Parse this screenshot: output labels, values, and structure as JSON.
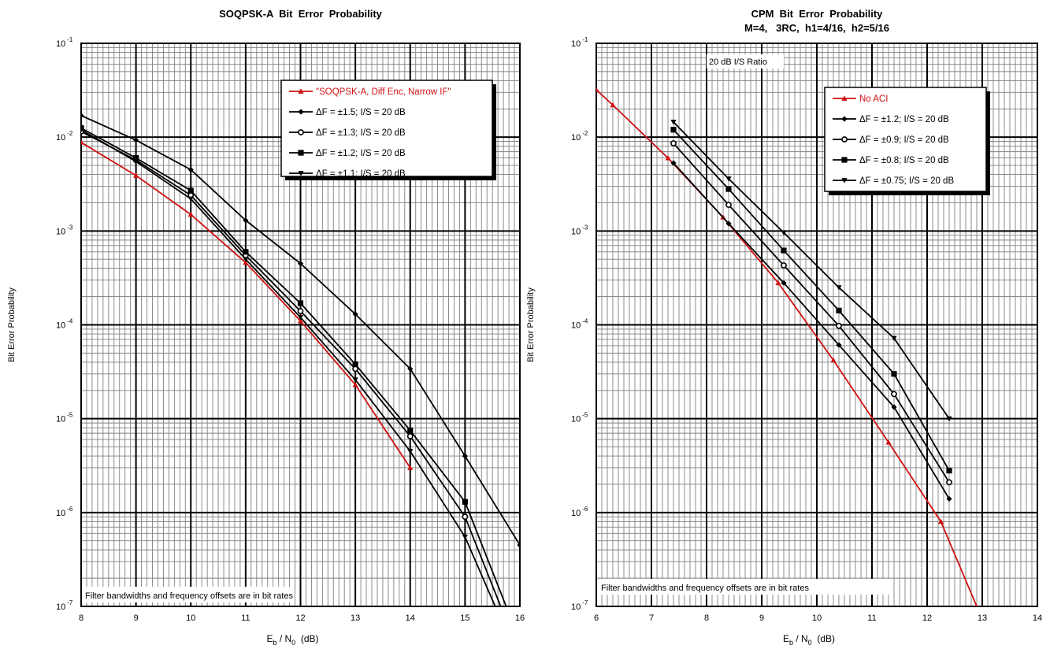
{
  "colors": {
    "black": "#000000",
    "red": "#d01010",
    "grid": "#808080"
  },
  "chart_data": [
    {
      "type": "line",
      "title": "SOQPSK-A  Bit  Error  Probability",
      "subtitle": "",
      "xlabel_main": "E",
      "xlabel_sub1": "b",
      "xlabel_mid": " / N",
      "xlabel_sub2": "0",
      "xlabel_end": "  (dB)",
      "ylabel": "Bit Error Probability",
      "xlim": [
        8,
        16
      ],
      "ylim": [
        1e-07,
        0.1
      ],
      "log_y": true,
      "grid": true,
      "xticks": [
        8,
        9,
        10,
        11,
        12,
        13,
        14,
        15,
        16
      ],
      "yticks": [
        {
          "value": 0.1,
          "base": "10",
          "exp": "-1"
        },
        {
          "value": 0.01,
          "base": "10",
          "exp": "-2"
        },
        {
          "value": 0.001,
          "base": "10",
          "exp": "-3"
        },
        {
          "value": 0.0001,
          "base": "10",
          "exp": "-4"
        },
        {
          "value": 1e-05,
          "base": "10",
          "exp": "-5"
        },
        {
          "value": 1e-06,
          "base": "10",
          "exp": "-6"
        },
        {
          "value": 1e-07,
          "base": "10",
          "exp": "-7"
        }
      ],
      "legend_position": "top-right",
      "annotations": [
        "Filter bandwidths and frequency offsets are in bit rates"
      ],
      "series": [
        {
          "name": "\"SOQPSK-A, Diff Enc, Narrow IF\"",
          "color": "#d01010",
          "marker": "triangle",
          "x": [
            8,
            9,
            10,
            11,
            12,
            13,
            14
          ],
          "y": [
            0.0088,
            0.0039,
            0.0015,
            0.00046,
            0.00011,
            2.3e-05,
            3e-06
          ]
        },
        {
          "name": "ΔF = ±1.5; I/S = 20 dB",
          "color": "#000000",
          "marker": "diamond",
          "x": [
            8,
            9,
            10,
            11,
            12,
            13,
            14,
            15,
            16
          ],
          "y": [
            0.017,
            0.0093,
            0.0045,
            0.0013,
            0.00045,
            0.00013,
            3.4e-05,
            4e-06,
            4.5e-07
          ]
        },
        {
          "name": "ΔF = ±1.3; I/S = 20 dB",
          "color": "#000000",
          "marker": "open-circle",
          "x": [
            8,
            9,
            10,
            11,
            12,
            13,
            14,
            15,
            15.65
          ],
          "y": [
            0.0115,
            0.0057,
            0.0024,
            0.00055,
            0.00014,
            3.4e-05,
            6.5e-06,
            9e-07,
            1e-07
          ]
        },
        {
          "name": "ΔF = ±1.2; I/S = 20 dB",
          "color": "#000000",
          "marker": "square",
          "x": [
            8,
            9,
            10,
            11,
            12,
            13,
            14,
            15,
            15.75
          ],
          "y": [
            0.0125,
            0.006,
            0.0027,
            0.0006,
            0.00017,
            3.8e-05,
            7.5e-06,
            1.3e-06,
            1e-07
          ]
        },
        {
          "name": "ΔF = ±1.1; I/S = 20 dB",
          "color": "#000000",
          "marker": "triangle-down",
          "x": [
            8,
            9,
            10,
            11,
            12,
            13,
            14,
            15,
            15.55
          ],
          "y": [
            0.012,
            0.0055,
            0.0022,
            0.0005,
            0.00012,
            2.6e-05,
            4.5e-06,
            5.5e-07,
            1e-07
          ]
        }
      ]
    },
    {
      "type": "line",
      "title": "CPM  Bit  Error  Probability",
      "subtitle": "M=4,   3RC,  h1=4/16,  h2=5/16",
      "xlabel_main": "E",
      "xlabel_sub1": "b",
      "xlabel_mid": " / N",
      "xlabel_sub2": "0",
      "xlabel_end": "  (dB)",
      "ylabel": "Bit Error Probability",
      "xlim": [
        6,
        14
      ],
      "ylim": [
        1e-07,
        0.1
      ],
      "log_y": true,
      "grid": true,
      "xticks": [
        6,
        7,
        8,
        9,
        10,
        11,
        12,
        13,
        14
      ],
      "yticks": [
        {
          "value": 0.1,
          "base": "10",
          "exp": "-1"
        },
        {
          "value": 0.01,
          "base": "10",
          "exp": "-2"
        },
        {
          "value": 0.001,
          "base": "10",
          "exp": "-3"
        },
        {
          "value": 0.0001,
          "base": "10",
          "exp": "-4"
        },
        {
          "value": 1e-05,
          "base": "10",
          "exp": "-5"
        },
        {
          "value": 1e-06,
          "base": "10",
          "exp": "-6"
        },
        {
          "value": 1e-07,
          "base": "10",
          "exp": "-7"
        }
      ],
      "legend_position": "top-right",
      "annotations": [
        "20 dB I/S Ratio",
        "Filter bandwidths and frequency offsets are in bit rates"
      ],
      "series": [
        {
          "name": "No ACI",
          "color": "#d01010",
          "marker": "triangle",
          "x": [
            6,
            6.3,
            7.3,
            8.3,
            9.3,
            10.3,
            11.3,
            12.25,
            12.9
          ],
          "y": [
            0.032,
            0.022,
            0.006,
            0.0014,
            0.00028,
            4.2e-05,
            5.6e-06,
            8e-07,
            1e-07
          ]
        },
        {
          "name": "ΔF = ±1.2; I/S = 20 dB",
          "color": "#000000",
          "marker": "diamond",
          "x": [
            7.4,
            8.4,
            9.4,
            10.4,
            11.4,
            12.4
          ],
          "y": [
            0.0053,
            0.0012,
            0.00028,
            6.1e-05,
            1.33e-05,
            1.4e-06
          ]
        },
        {
          "name": "ΔF = ±0.9; I/S = 20 dB",
          "color": "#000000",
          "marker": "open-circle",
          "x": [
            7.4,
            8.4,
            9.4,
            10.4,
            11.4,
            12.4
          ],
          "y": [
            0.0086,
            0.0019,
            0.00043,
            9.75e-05,
            1.83e-05,
            2.1e-06
          ]
        },
        {
          "name": "ΔF = ±0.8; I/S = 20 dB",
          "color": "#000000",
          "marker": "square",
          "x": [
            7.4,
            8.4,
            9.4,
            10.4,
            11.4,
            12.4
          ],
          "y": [
            0.012,
            0.0028,
            0.00062,
            0.000142,
            3e-05,
            2.8e-06
          ]
        },
        {
          "name": "ΔF = ±0.75; I/S = 20 dB",
          "color": "#000000",
          "marker": "triangle-down",
          "x": [
            7.4,
            8.4,
            9.4,
            10.4,
            11.4,
            12.4
          ],
          "y": [
            0.0145,
            0.0036,
            0.00096,
            0.00025,
            7.2e-05,
            1e-05
          ]
        }
      ]
    }
  ]
}
